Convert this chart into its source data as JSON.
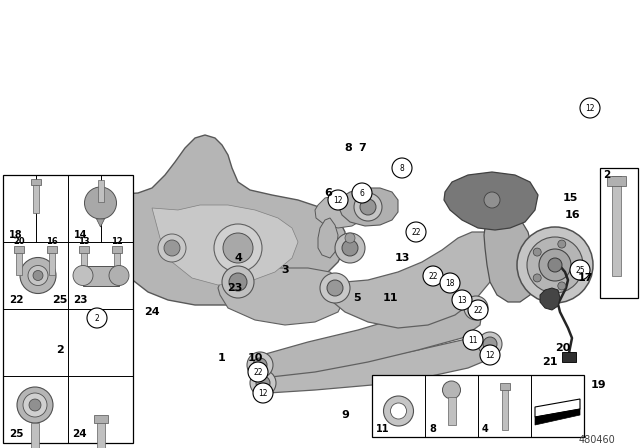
{
  "diagram_number": "480460",
  "bg_color": "#ffffff",
  "gray1": "#b8b8b8",
  "gray2": "#c8c8c8",
  "gray3": "#a8a8a8",
  "gray_dark": "#707070",
  "edge_color": "#606060",
  "circle_items": [
    [
      263,
      393,
      "12"
    ],
    [
      490,
      355,
      "12"
    ],
    [
      590,
      108,
      "12"
    ],
    [
      258,
      372,
      "22"
    ],
    [
      478,
      310,
      "22"
    ],
    [
      433,
      276,
      "22"
    ],
    [
      416,
      232,
      "22"
    ],
    [
      473,
      340,
      "11"
    ],
    [
      462,
      300,
      "13"
    ],
    [
      450,
      283,
      "18"
    ],
    [
      580,
      270,
      "25"
    ],
    [
      97,
      318,
      "2"
    ],
    [
      338,
      200,
      "12"
    ],
    [
      402,
      168,
      "8"
    ],
    [
      362,
      193,
      "6"
    ]
  ],
  "bold_items": [
    [
      222,
      358,
      "1"
    ],
    [
      60,
      350,
      "2"
    ],
    [
      285,
      270,
      "3"
    ],
    [
      238,
      258,
      "4"
    ],
    [
      357,
      298,
      "5"
    ],
    [
      328,
      193,
      "6"
    ],
    [
      362,
      148,
      "7"
    ],
    [
      348,
      148,
      "8"
    ],
    [
      345,
      415,
      "9"
    ],
    [
      255,
      358,
      "10"
    ],
    [
      390,
      298,
      "11"
    ],
    [
      402,
      258,
      "13"
    ],
    [
      570,
      198,
      "15"
    ],
    [
      572,
      215,
      "16"
    ],
    [
      585,
      278,
      "17"
    ],
    [
      598,
      385,
      "19"
    ],
    [
      563,
      348,
      "20"
    ],
    [
      550,
      362,
      "21"
    ],
    [
      235,
      288,
      "23"
    ],
    [
      152,
      312,
      "24"
    ],
    [
      60,
      300,
      "25"
    ]
  ]
}
